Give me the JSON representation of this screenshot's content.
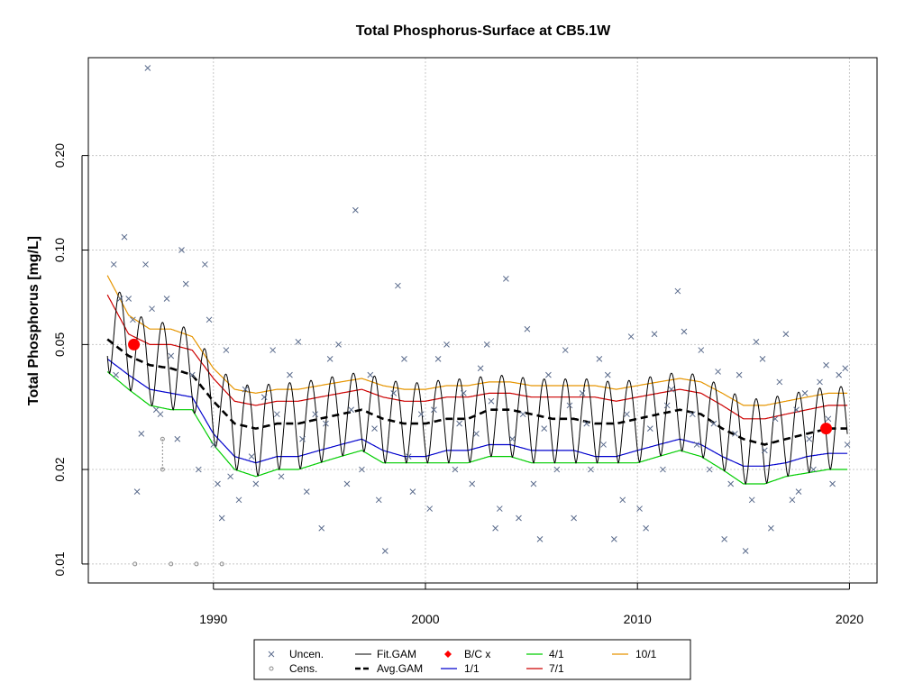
{
  "chart_data": {
    "type": "scatter",
    "title": "Total Phosphorus-Surface at CB5.1W",
    "xlabel": "",
    "ylabel": "Total Phosphorus [mg/L]",
    "y_scale": "log",
    "xlim": [
      1984.1,
      2021.3
    ],
    "ylim": [
      0.0087,
      0.41
    ],
    "x_ticks": [
      1990,
      2000,
      2010,
      2020
    ],
    "x_tick_labels": [
      "1990",
      "2000",
      "2010",
      "2020"
    ],
    "y_ticks": [
      0.01,
      0.02,
      0.05,
      0.1,
      0.2
    ],
    "y_tick_labels": [
      "0.01",
      "0.02",
      "0.05",
      "0.10",
      "0.20"
    ],
    "grid": true,
    "legend_position": "bottom",
    "legend": {
      "col1": [
        "Uncen.",
        "Cens."
      ],
      "col2": [
        "Fit.GAM",
        "Avg.GAM"
      ],
      "col3": [
        "B/C x",
        "1/1"
      ],
      "col4": [
        "4/1",
        "7/1"
      ],
      "col5": [
        "10/1"
      ]
    },
    "colors": {
      "uncen": "#5a6b8c",
      "cens": "#8c8c8c",
      "fit": "#000000",
      "avg": "#000000",
      "bc": "#ff0000",
      "d1_1": "#0000cd",
      "d4_1": "#00cd00",
      "d7_1": "#cd0000",
      "d10_1": "#e69500"
    },
    "baseline_change_points": [
      {
        "x": 1986.25,
        "y": 0.05
      },
      {
        "x": 2018.9,
        "y": 0.027
      }
    ],
    "avg_gam": {
      "x": [
        1985.0,
        1986.0,
        1987.0,
        1988.0,
        1989.0,
        1990.0,
        1991.0,
        1992.0,
        1993.0,
        1994.0,
        1995.0,
        1996.0,
        1997.0,
        1998.0,
        1999.0,
        2000.0,
        2001.0,
        2002.0,
        2003.0,
        2004.0,
        2005.0,
        2006.0,
        2007.0,
        2008.0,
        2009.0,
        2010.0,
        2011.0,
        2012.0,
        2013.0,
        2014.0,
        2015.0,
        2016.0,
        2017.0,
        2018.0,
        2019.0,
        2019.9
      ],
      "y": [
        0.052,
        0.046,
        0.043,
        0.042,
        0.04,
        0.033,
        0.028,
        0.027,
        0.028,
        0.028,
        0.029,
        0.03,
        0.031,
        0.029,
        0.028,
        0.028,
        0.029,
        0.029,
        0.031,
        0.031,
        0.03,
        0.029,
        0.029,
        0.028,
        0.028,
        0.029,
        0.03,
        0.031,
        0.03,
        0.027,
        0.025,
        0.024,
        0.025,
        0.026,
        0.027,
        0.027
      ]
    },
    "date_curves": {
      "d1_1": [
        0.045,
        0.04,
        0.036,
        0.035,
        0.034,
        0.026,
        0.022,
        0.021,
        0.022,
        0.022,
        0.023,
        0.024,
        0.025,
        0.023,
        0.022,
        0.022,
        0.023,
        0.023,
        0.024,
        0.024,
        0.023,
        0.023,
        0.023,
        0.022,
        0.022,
        0.023,
        0.024,
        0.025,
        0.024,
        0.022,
        0.0205,
        0.0205,
        0.021,
        0.022,
        0.0225,
        0.0225
      ],
      "d4_1": [
        0.041,
        0.036,
        0.032,
        0.031,
        0.031,
        0.024,
        0.02,
        0.019,
        0.02,
        0.02,
        0.021,
        0.022,
        0.023,
        0.021,
        0.021,
        0.021,
        0.021,
        0.021,
        0.022,
        0.022,
        0.021,
        0.021,
        0.021,
        0.021,
        0.021,
        0.021,
        0.022,
        0.023,
        0.022,
        0.02,
        0.018,
        0.018,
        0.019,
        0.0195,
        0.02,
        0.02
      ],
      "d7_1": [
        0.072,
        0.054,
        0.05,
        0.05,
        0.048,
        0.039,
        0.033,
        0.032,
        0.033,
        0.033,
        0.034,
        0.035,
        0.036,
        0.034,
        0.033,
        0.033,
        0.034,
        0.034,
        0.035,
        0.035,
        0.034,
        0.034,
        0.034,
        0.034,
        0.033,
        0.034,
        0.035,
        0.036,
        0.035,
        0.032,
        0.029,
        0.029,
        0.03,
        0.031,
        0.032,
        0.032
      ],
      "d10_1": [
        0.083,
        0.062,
        0.056,
        0.056,
        0.053,
        0.042,
        0.036,
        0.035,
        0.036,
        0.036,
        0.037,
        0.038,
        0.039,
        0.037,
        0.036,
        0.036,
        0.037,
        0.037,
        0.038,
        0.038,
        0.037,
        0.037,
        0.037,
        0.037,
        0.036,
        0.037,
        0.038,
        0.039,
        0.038,
        0.035,
        0.032,
        0.032,
        0.033,
        0.034,
        0.035,
        0.035
      ]
    },
    "uncensored_points": [
      [
        1985.3,
        0.09
      ],
      [
        1985.4,
        0.04
      ],
      [
        1985.6,
        0.07
      ],
      [
        1985.8,
        0.11
      ],
      [
        1986.0,
        0.07
      ],
      [
        1986.2,
        0.06
      ],
      [
        1986.4,
        0.017
      ],
      [
        1986.6,
        0.026
      ],
      [
        1986.8,
        0.09
      ],
      [
        1986.9,
        0.38
      ],
      [
        1987.1,
        0.065
      ],
      [
        1987.5,
        0.03
      ],
      [
        1987.8,
        0.07
      ],
      [
        1988.3,
        0.025
      ],
      [
        1988.5,
        0.1
      ],
      [
        1988.7,
        0.078
      ],
      [
        1989.0,
        0.04
      ],
      [
        1989.3,
        0.02
      ],
      [
        1989.6,
        0.09
      ],
      [
        1989.8,
        0.06
      ],
      [
        1990.2,
        0.018
      ],
      [
        1990.4,
        0.014
      ],
      [
        1990.6,
        0.048
      ],
      [
        1990.8,
        0.019
      ],
      [
        1991.2,
        0.016
      ],
      [
        1991.5,
        0.036
      ],
      [
        1992.0,
        0.018
      ],
      [
        1992.4,
        0.034
      ],
      [
        1992.8,
        0.048
      ],
      [
        1993.2,
        0.019
      ],
      [
        1993.6,
        0.04
      ],
      [
        1994.0,
        0.051
      ],
      [
        1994.4,
        0.017
      ],
      [
        1994.8,
        0.03
      ],
      [
        1995.1,
        0.013
      ],
      [
        1995.5,
        0.045
      ],
      [
        1995.9,
        0.05
      ],
      [
        1996.3,
        0.018
      ],
      [
        1996.7,
        0.134
      ],
      [
        1997.0,
        0.02
      ],
      [
        1997.4,
        0.04
      ],
      [
        1997.8,
        0.016
      ],
      [
        1998.1,
        0.011
      ],
      [
        1998.5,
        0.035
      ],
      [
        1998.7,
        0.077
      ],
      [
        1999.0,
        0.045
      ],
      [
        1999.4,
        0.017
      ],
      [
        1999.8,
        0.03
      ],
      [
        2000.2,
        0.015
      ],
      [
        2000.6,
        0.045
      ],
      [
        2001.0,
        0.05
      ],
      [
        2001.4,
        0.02
      ],
      [
        2001.8,
        0.035
      ],
      [
        2002.2,
        0.018
      ],
      [
        2002.6,
        0.042
      ],
      [
        2002.9,
        0.05
      ],
      [
        2003.3,
        0.013
      ],
      [
        2003.5,
        0.015
      ],
      [
        2003.8,
        0.081
      ],
      [
        2004.1,
        0.025
      ],
      [
        2004.4,
        0.014
      ],
      [
        2004.8,
        0.056
      ],
      [
        2005.1,
        0.018
      ],
      [
        2005.4,
        0.012
      ],
      [
        2005.8,
        0.04
      ],
      [
        2006.2,
        0.02
      ],
      [
        2006.6,
        0.048
      ],
      [
        2007.0,
        0.014
      ],
      [
        2007.4,
        0.035
      ],
      [
        2007.8,
        0.02
      ],
      [
        2008.2,
        0.045
      ],
      [
        2008.6,
        0.04
      ],
      [
        2008.9,
        0.012
      ],
      [
        2009.3,
        0.016
      ],
      [
        2009.7,
        0.053
      ],
      [
        2010.1,
        0.015
      ],
      [
        2010.4,
        0.013
      ],
      [
        2010.8,
        0.054
      ],
      [
        2011.2,
        0.02
      ],
      [
        2011.6,
        0.036
      ],
      [
        2011.9,
        0.074
      ],
      [
        2012.2,
        0.055
      ],
      [
        2012.6,
        0.03
      ],
      [
        2013.0,
        0.048
      ],
      [
        2013.4,
        0.02
      ],
      [
        2013.8,
        0.041
      ],
      [
        2014.1,
        0.012
      ],
      [
        2014.4,
        0.018
      ],
      [
        2014.8,
        0.04
      ],
      [
        2015.1,
        0.011
      ],
      [
        2015.4,
        0.016
      ],
      [
        2015.6,
        0.051
      ],
      [
        2015.9,
        0.045
      ],
      [
        2016.3,
        0.013
      ],
      [
        2016.7,
        0.038
      ],
      [
        2017.0,
        0.054
      ],
      [
        2017.3,
        0.016
      ],
      [
        2017.6,
        0.017
      ],
      [
        2017.9,
        0.035
      ],
      [
        2018.3,
        0.02
      ],
      [
        2018.6,
        0.038
      ],
      [
        2018.9,
        0.043
      ],
      [
        2019.2,
        0.018
      ],
      [
        2019.5,
        0.04
      ],
      [
        2019.8,
        0.042
      ],
      [
        2019.9,
        0.024
      ],
      [
        1987.3,
        0.031
      ],
      [
        1988.0,
        0.046
      ],
      [
        1990.0,
        0.024
      ],
      [
        1991.8,
        0.022
      ],
      [
        1993.0,
        0.03
      ],
      [
        1994.2,
        0.025
      ],
      [
        1995.3,
        0.028
      ],
      [
        1996.5,
        0.031
      ],
      [
        1997.6,
        0.027
      ],
      [
        1999.2,
        0.022
      ],
      [
        2000.4,
        0.031
      ],
      [
        2001.6,
        0.028
      ],
      [
        2002.4,
        0.026
      ],
      [
        2003.1,
        0.033
      ],
      [
        2004.6,
        0.03
      ],
      [
        2005.6,
        0.027
      ],
      [
        2006.8,
        0.032
      ],
      [
        2007.6,
        0.028
      ],
      [
        2008.4,
        0.024
      ],
      [
        2009.5,
        0.03
      ],
      [
        2010.6,
        0.027
      ],
      [
        2011.4,
        0.032
      ],
      [
        2012.8,
        0.024
      ],
      [
        2013.6,
        0.028
      ],
      [
        2014.6,
        0.026
      ],
      [
        2016.0,
        0.023
      ],
      [
        2016.5,
        0.029
      ],
      [
        2017.5,
        0.031
      ],
      [
        2018.1,
        0.025
      ],
      [
        2019.0,
        0.029
      ]
    ],
    "censored_points": [
      {
        "x": 1986.3,
        "y": 0.01,
        "upper": null
      },
      {
        "x": 1987.6,
        "y": 0.02,
        "upper": 0.025
      },
      {
        "x": 1988.0,
        "y": 0.01,
        "upper": null
      },
      {
        "x": 1989.2,
        "y": 0.01,
        "upper": null
      },
      {
        "x": 1990.4,
        "y": 0.01,
        "upper": null
      }
    ]
  }
}
